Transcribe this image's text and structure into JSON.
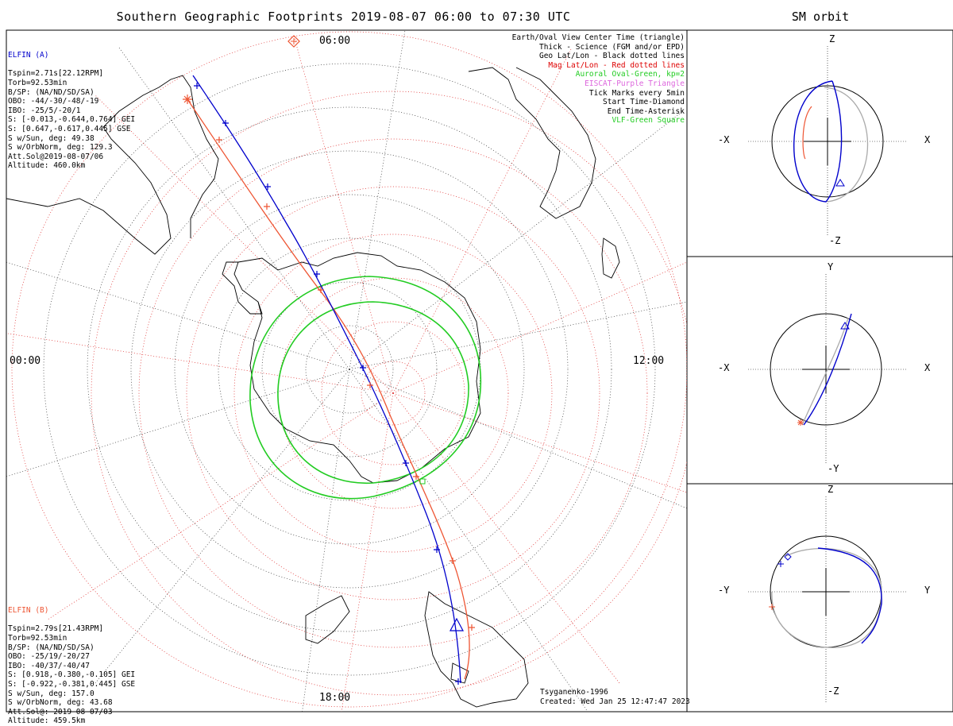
{
  "title": "Southern Geographic Footprints 2019-08-07 06:00 to 07:30 UTC",
  "sm_title": "SM orbit",
  "time_labels": {
    "top": "06:00",
    "left": "00:00",
    "right": "12:00",
    "bottom": "18:00"
  },
  "elfin_a": {
    "name": "ELFIN (A)",
    "color": "#0000cc",
    "lines": [
      "Tspin=2.71s[22.12RPM]",
      "Torb=92.53min",
      "B/SP: (NA/ND/SD/SA)",
      "OBO: -44/-30/-48/-19",
      "IBO: -25/5/-20/1",
      "S: [-0.013,-0.644,0.764] GEI",
      "S: [0.647,-0.617,0.445] GSE",
      "S w/Sun, deg: 49.38",
      "S w/OrbNorm, deg: 129.3",
      "Att.Sol@2019-08-07/06",
      "Altitude: 460.0km"
    ]
  },
  "elfin_b": {
    "name": "ELFIN (B)",
    "color": "#ee5533",
    "lines": [
      "Tspin=2.79s[21.43RPM]",
      "Torb=92.53min",
      "B/SP: (NA/ND/SD/SA)",
      "OBO: -25/19/-20/27",
      "IBO: -40/37/-40/47",
      "S: [0.918,-0.380,-0.105] GEI",
      "S: [-0.922,-0.381,0.445] GSE",
      "S w/Sun, deg: 157.0",
      "S w/OrbNorm, deg: 43.68",
      "Att.Sol@: 2019-08-07/03",
      "Altitude: 459.5km"
    ]
  },
  "legend": [
    {
      "text": "Earth/Oval View Center Time (triangle)",
      "color": "#000000"
    },
    {
      "text": "Thick - Science (FGM and/or EPD)",
      "color": "#000000"
    },
    {
      "text": "Geo Lat/Lon - Black dotted lines",
      "color": "#000000"
    },
    {
      "text": "Mag Lat/Lon - Red dotted lines",
      "color": "#dd0000"
    },
    {
      "text": "Auroral Oval-Green, kp=2",
      "color": "#22cc22"
    },
    {
      "text": "EISCAT-Purple Triangle",
      "color": "#dd66dd"
    },
    {
      "text": "Tick Marks every 5min",
      "color": "#000000"
    },
    {
      "text": "Start Time-Diamond",
      "color": "#000000"
    },
    {
      "text": "End Time-Asterisk",
      "color": "#000000"
    },
    {
      "text": "VLF-Green Square",
      "color": "#22cc22"
    }
  ],
  "credits": {
    "model": "Tsyganenko-1996",
    "created": "Created: Wed Jan 25 12:47:47 2023"
  },
  "sm_panels": [
    {
      "id": "xz",
      "left": "-X",
      "right": "X",
      "top": "Z",
      "bottom": "-Z"
    },
    {
      "id": "xy",
      "left": "-X",
      "right": "X",
      "top": "Y",
      "bottom": "-Y"
    },
    {
      "id": "yz",
      "left": "-Y",
      "right": "Y",
      "top": "Z",
      "bottom": "-Z"
    }
  ],
  "colors": {
    "probe_a": "#0000cc",
    "probe_b": "#ee5533",
    "oval": "#22cc22",
    "grid_mag": "#dd2222",
    "orbit_grey": "#aaaaaa"
  }
}
